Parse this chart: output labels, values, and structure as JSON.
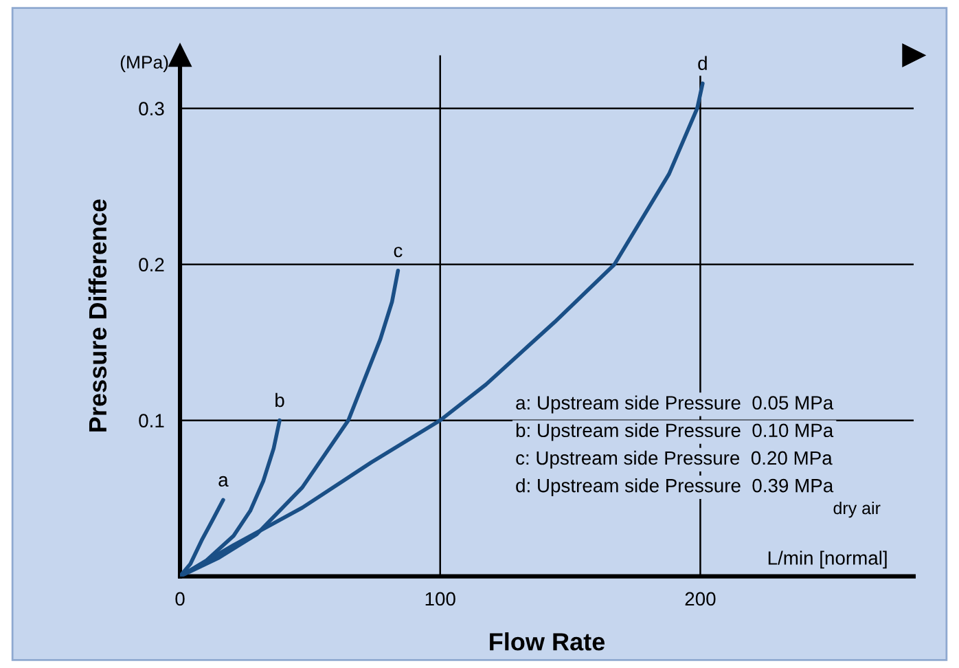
{
  "chart_data": {
    "type": "line",
    "xlabel": "Flow Rate",
    "ylabel": "Pressure Difference",
    "xlim": [
      0,
      282
    ],
    "ylim": [
      0,
      0.334
    ],
    "xticks": [
      0,
      100,
      200
    ],
    "yticks": [
      0.1,
      0.2,
      0.3
    ],
    "grid": true,
    "marker": "none",
    "line_style": "solid",
    "series": [
      {
        "name": "a",
        "color": "#1a4f86",
        "x": [
          0,
          4,
          8.3,
          12.5,
          16.6
        ],
        "values": [
          0,
          0.008,
          0.023,
          0.036,
          0.049
        ]
      },
      {
        "name": "b",
        "color": "#1a4f86",
        "x": [
          0,
          10,
          20.6,
          27,
          32,
          36,
          38.3
        ],
        "values": [
          0,
          0.01,
          0.026,
          0.042,
          0.061,
          0.082,
          0.1
        ]
      },
      {
        "name": "c",
        "color": "#1a4f86",
        "x": [
          0,
          15,
          29.5,
          47,
          64.7,
          77,
          81.5,
          83.8
        ],
        "values": [
          0,
          0.012,
          0.027,
          0.057,
          0.1,
          0.152,
          0.176,
          0.196
        ]
      },
      {
        "name": "d",
        "color": "#1a4f86",
        "x": [
          0,
          20.6,
          47,
          73.5,
          100,
          117.6,
          144,
          167,
          188,
          198.8,
          200.9
        ],
        "values": [
          0,
          0.02,
          0.044,
          0.073,
          0.1,
          0.123,
          0.163,
          0.2,
          0.258,
          0.3,
          0.316
        ]
      }
    ],
    "annotations": [
      "(MPa)",
      "L/min [normal]",
      "a: Upstream side Pressure  0.05 MPa",
      "b: Upstream side Pressure  0.10 MPa",
      "c: Upstream side Pressure  0.20 MPa",
      "d: Upstream side Pressure  0.39 MPa",
      "dry air"
    ]
  }
}
